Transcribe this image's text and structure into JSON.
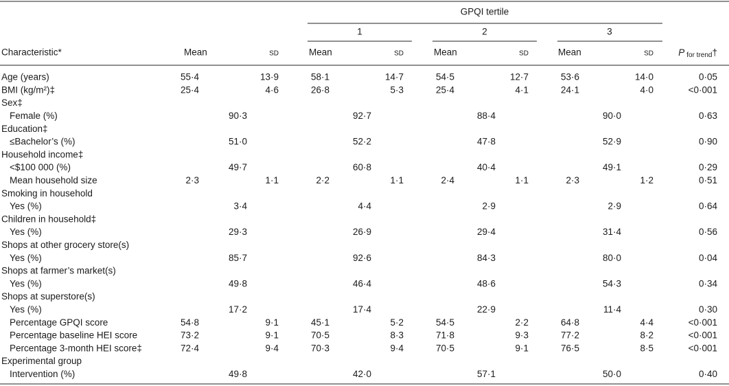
{
  "header": {
    "characteristic": "Characteristic*",
    "mean": "Mean",
    "sd": "SD",
    "group": "GPQI tertile",
    "tertiles": [
      "1",
      "2",
      "3"
    ],
    "p": {
      "symbol": "P",
      "sub": "for trend",
      "mark": "†"
    }
  },
  "table": {
    "rows": [
      {
        "label": "Age (years)",
        "overall": {
          "mean": "55·4",
          "sd": "13·9"
        },
        "tertiles": [
          {
            "mean": "58·1",
            "sd": "14·7"
          },
          {
            "mean": "54·5",
            "sd": "12·7"
          },
          {
            "mean": "53·6",
            "sd": "14·0"
          }
        ],
        "p": "0·05"
      },
      {
        "label": "BMI (kg/m²)‡",
        "overall": {
          "mean": "25·4",
          "sd": "4·6"
        },
        "tertiles": [
          {
            "mean": "26·8",
            "sd": "5·3"
          },
          {
            "mean": "25·4",
            "sd": "4·1"
          },
          {
            "mean": "24·1",
            "sd": "4·0"
          }
        ],
        "p": "<0·001"
      },
      {
        "label": "Sex‡"
      },
      {
        "label": "Female (%)",
        "indent": true,
        "overall": {
          "percent": "90·3"
        },
        "tertiles": [
          {
            "percent": "92·7"
          },
          {
            "percent": "88·4"
          },
          {
            "percent": "90·0"
          }
        ],
        "p": "0·63"
      },
      {
        "label": "Education‡"
      },
      {
        "label": "≤Bachelor’s (%)",
        "indent": true,
        "overall": {
          "percent": "51·0"
        },
        "tertiles": [
          {
            "percent": "52·2"
          },
          {
            "percent": "47·8"
          },
          {
            "percent": "52·9"
          }
        ],
        "p": "0·90"
      },
      {
        "label": "Household income‡"
      },
      {
        "label": "<$100 000 (%)",
        "indent": true,
        "overall": {
          "percent": "49·7"
        },
        "tertiles": [
          {
            "percent": "60·8"
          },
          {
            "percent": "40·4"
          },
          {
            "percent": "49·1"
          }
        ],
        "p": "0·29"
      },
      {
        "label": "Mean household size",
        "indent": true,
        "overall": {
          "mean": "2·3",
          "sd": "1·1"
        },
        "tertiles": [
          {
            "mean": "2·2",
            "sd": "1·1"
          },
          {
            "mean": "2·4",
            "sd": "1·1"
          },
          {
            "mean": "2·3",
            "sd": "1·2"
          }
        ],
        "p": "0·51"
      },
      {
        "label": "Smoking in household"
      },
      {
        "label": "Yes (%)",
        "indent": true,
        "overall": {
          "percent": "3·4"
        },
        "tertiles": [
          {
            "percent": "4·4"
          },
          {
            "percent": "2·9"
          },
          {
            "percent": "2·9"
          }
        ],
        "p": "0·64"
      },
      {
        "label": "Children in household‡"
      },
      {
        "label": "Yes (%)",
        "indent": true,
        "overall": {
          "percent": "29·3"
        },
        "tertiles": [
          {
            "percent": "26·9"
          },
          {
            "percent": "29·4"
          },
          {
            "percent": "31·4"
          }
        ],
        "p": "0·56"
      },
      {
        "label": "Shops at other grocery store(s)"
      },
      {
        "label": "Yes (%)",
        "indent": true,
        "overall": {
          "percent": "85·7"
        },
        "tertiles": [
          {
            "percent": "92·6"
          },
          {
            "percent": "84·3"
          },
          {
            "percent": "80·0"
          }
        ],
        "p": "0·04"
      },
      {
        "label": "Shops at farmer’s market(s)"
      },
      {
        "label": "Yes (%)",
        "indent": true,
        "overall": {
          "percent": "49·8"
        },
        "tertiles": [
          {
            "percent": "46·4"
          },
          {
            "percent": "48·6"
          },
          {
            "percent": "54·3"
          }
        ],
        "p": "0·34"
      },
      {
        "label": "Shops at superstore(s)"
      },
      {
        "label": "Yes (%)",
        "indent": true,
        "overall": {
          "percent": "17·2"
        },
        "tertiles": [
          {
            "percent": "17·4"
          },
          {
            "percent": "22·9"
          },
          {
            "percent": "11·4"
          }
        ],
        "p": "0·30"
      },
      {
        "label": "Percentage GPQI score",
        "indent": true,
        "overall": {
          "mean": "54·8",
          "sd": "9·1"
        },
        "tertiles": [
          {
            "mean": "45·1",
            "sd": "5·2"
          },
          {
            "mean": "54·5",
            "sd": "2·2"
          },
          {
            "mean": "64·8",
            "sd": "4·4"
          }
        ],
        "p": "<0·001"
      },
      {
        "label": "Percentage baseline HEI score",
        "indent": true,
        "overall": {
          "mean": "73·2",
          "sd": "9·1"
        },
        "tertiles": [
          {
            "mean": "70·5",
            "sd": "8·3"
          },
          {
            "mean": "71·8",
            "sd": "9·3"
          },
          {
            "mean": "77·2",
            "sd": "8·2"
          }
        ],
        "p": "<0·001"
      },
      {
        "label": "Percentage 3-month HEI score‡",
        "indent": true,
        "overall": {
          "mean": "72·4",
          "sd": "9·4"
        },
        "tertiles": [
          {
            "mean": "70·3",
            "sd": "9·4"
          },
          {
            "mean": "70·5",
            "sd": "9·1"
          },
          {
            "mean": "76·5",
            "sd": "8·5"
          }
        ],
        "p": "<0·001"
      },
      {
        "label": "Experimental group"
      },
      {
        "label": "Intervention (%)",
        "indent": true,
        "overall": {
          "percent": "49·8"
        },
        "tertiles": [
          {
            "percent": "42·0"
          },
          {
            "percent": "57·1"
          },
          {
            "percent": "50·0"
          }
        ],
        "p": "0·40"
      }
    ]
  }
}
